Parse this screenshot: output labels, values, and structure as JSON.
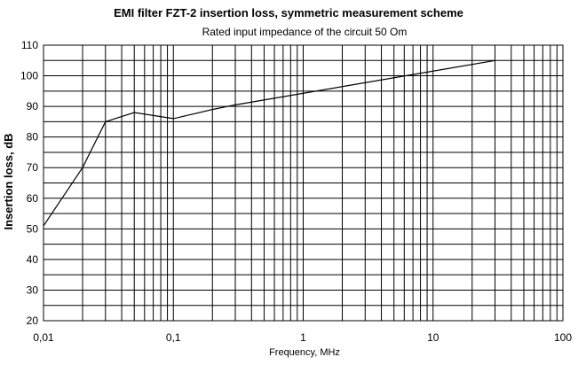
{
  "chart_data": {
    "type": "line",
    "title": "EMI filter FZT-2 insertion loss, symmetric measurement scheme",
    "subtitle": "Rated input impedance of the circuit 50 Om",
    "xlabel": "Frequency, MHz",
    "ylabel": "Insertion loss, dB",
    "x_scale": "log",
    "xlim": [
      0.01,
      100
    ],
    "ylim": [
      20,
      110
    ],
    "x_ticks": [
      {
        "value": 0.01,
        "label": "0,01"
      },
      {
        "value": 0.1,
        "label": "0,1"
      },
      {
        "value": 1,
        "label": "1"
      },
      {
        "value": 10,
        "label": "10"
      },
      {
        "value": 100,
        "label": "100"
      }
    ],
    "y_ticks": [
      {
        "value": 20,
        "label": "20"
      },
      {
        "value": 30,
        "label": "30"
      },
      {
        "value": 40,
        "label": "40"
      },
      {
        "value": 50,
        "label": "50"
      },
      {
        "value": 60,
        "label": "60"
      },
      {
        "value": 70,
        "label": "70"
      },
      {
        "value": 80,
        "label": "80"
      },
      {
        "value": 90,
        "label": "90"
      },
      {
        "value": 100,
        "label": "100"
      },
      {
        "value": 110,
        "label": "110"
      }
    ],
    "y_minor_step": 5,
    "grid": true,
    "legend": "none",
    "series": [
      {
        "color": "#000000",
        "x": [
          0.01,
          0.02,
          0.03,
          0.05,
          0.1,
          0.2,
          0.3,
          30
        ],
        "y": [
          51,
          70,
          85,
          88,
          86,
          89,
          90.5,
          105
        ]
      }
    ]
  }
}
